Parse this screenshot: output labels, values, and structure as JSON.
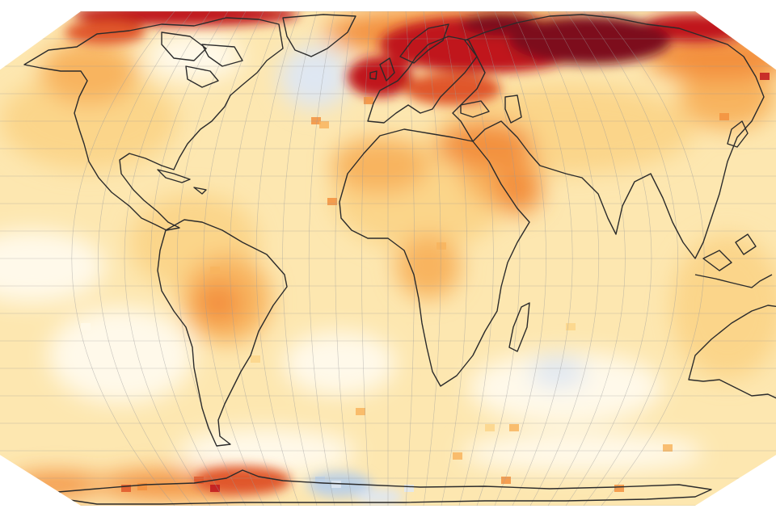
{
  "map": {
    "projection": "robinson",
    "type": "temperature-anomaly",
    "graticule": "on",
    "colors": {
      "background": "#ffffff",
      "outline": "#2b2b2b",
      "graticule": "#9a9a9a",
      "neutral": "#fff9ea",
      "pale": "#fde7b0",
      "light": "#fbd58a",
      "mid": "#f8b45e",
      "warm": "#f3903e",
      "hot": "#e0572a",
      "red": "#c0191f",
      "darkred": "#7d0a1e",
      "cool": "#dfe7f2",
      "cooler": "#bcd0e6"
    },
    "hotspots": [
      {
        "region": "northern-siberia",
        "level": "darkred"
      },
      {
        "region": "europe-russia",
        "level": "red"
      },
      {
        "region": "arctic-greenland",
        "level": "red"
      },
      {
        "region": "antarctic-peninsula",
        "level": "hot"
      },
      {
        "region": "south-america-interior",
        "level": "warm"
      },
      {
        "region": "north-africa",
        "level": "warm"
      },
      {
        "region": "middle-east",
        "level": "warm"
      },
      {
        "region": "north-atlantic",
        "level": "cool"
      },
      {
        "region": "antarctica-weddell",
        "level": "cooler"
      }
    ]
  }
}
